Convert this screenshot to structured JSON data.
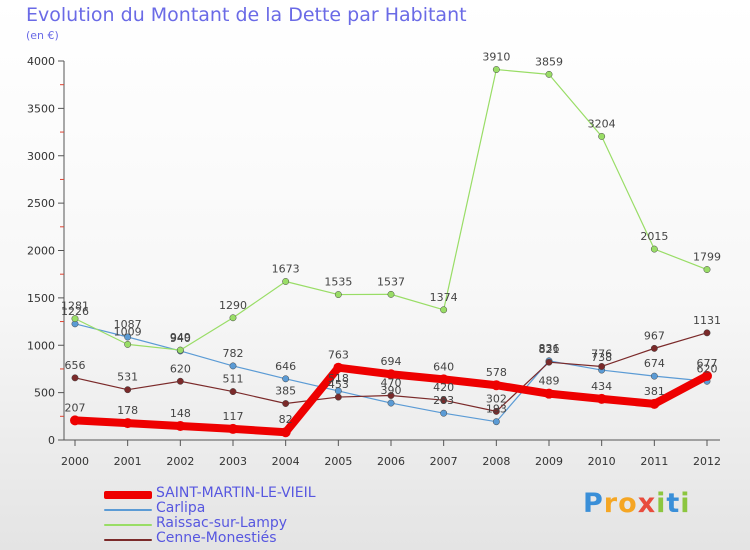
{
  "header": {
    "title": "Evolution du Montant de la Dette par Habitant",
    "subtitle": "(en €)"
  },
  "logo": {
    "letters": [
      "P",
      "r",
      "o",
      "x",
      "i",
      "t",
      "i"
    ],
    "colors": [
      "#3a8fd8",
      "#f5a623",
      "#f5a623",
      "#e84c3d",
      "#8cc63f",
      "#3a8fd8",
      "#8cc63f"
    ]
  },
  "chart_data": {
    "type": "line",
    "title": "Evolution du Montant de la Dette par Habitant",
    "subtitle": "(en €)",
    "xlabel": "",
    "ylabel": "",
    "x": [
      "2000",
      "2001",
      "2002",
      "2003",
      "2004",
      "2005",
      "2006",
      "2007",
      "2008",
      "2009",
      "2010",
      "2011",
      "2012"
    ],
    "ylim": [
      0,
      4000
    ],
    "yticks": [
      0,
      500,
      1000,
      1500,
      2000,
      2500,
      3000,
      3500,
      4000
    ],
    "grid": false,
    "legend_position": "bottom-left",
    "series": [
      {
        "name": "SAINT-MARTIN-LE-VIEIL",
        "color": "#ee0000",
        "width": 8,
        "values": [
          207,
          178,
          148,
          117,
          82,
          763,
          694,
          640,
          578,
          489,
          434,
          381,
          677
        ]
      },
      {
        "name": "Carlipa",
        "color": "#5b9bd5",
        "width": 1.2,
        "values": [
          1226,
          1087,
          940,
          782,
          646,
          518,
          390,
          283,
          193,
          836,
          738,
          674,
          620
        ]
      },
      {
        "name": "Raissac-sur-Lampy",
        "color": "#99dd66",
        "width": 1.2,
        "values": [
          1281,
          1009,
          949,
          1290,
          1673,
          1535,
          1537,
          1374,
          3910,
          3859,
          3204,
          2015,
          1799
        ]
      },
      {
        "name": "Cenne-Monestiés",
        "color": "#7b2a2a",
        "width": 1.2,
        "values": [
          656,
          531,
          620,
          511,
          385,
          453,
          470,
          420,
          302,
          821,
          776,
          967,
          1131
        ]
      }
    ]
  }
}
